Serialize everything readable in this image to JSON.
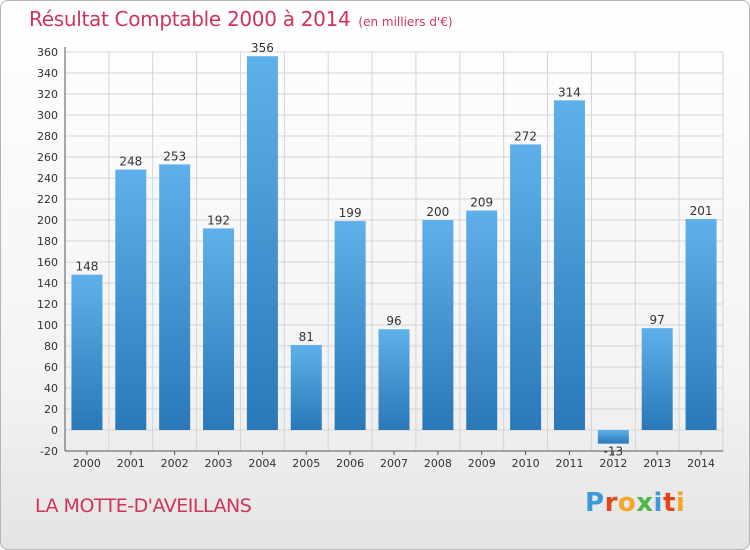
{
  "title": "Résultat Comptable 2000 à 2014",
  "subtitle": "(en milliers d'€)",
  "location": "LA MOTTE-D'AVEILLANS",
  "brand": "Proxiti",
  "brand_colors": [
    "#3a9ad9",
    "#e0471f",
    "#f5a623",
    "#4db848",
    "#3a9ad9",
    "#e0471f",
    "#f5a623"
  ],
  "chart_data": {
    "type": "bar",
    "categories": [
      "2000",
      "2001",
      "2002",
      "2003",
      "2004",
      "2005",
      "2006",
      "2007",
      "2008",
      "2009",
      "2010",
      "2011",
      "2012",
      "2013",
      "2014"
    ],
    "values": [
      148,
      248,
      253,
      192,
      356,
      81,
      199,
      96,
      200,
      209,
      272,
      314,
      -13,
      97,
      201
    ],
    "data_labels": [
      "148",
      "248",
      "253",
      "192",
      "356",
      "81",
      "199",
      "96",
      "200",
      "209",
      "272",
      "314",
      "-13",
      "97",
      "201"
    ],
    "ylim": [
      -20,
      360
    ],
    "yticks": [
      -20,
      0,
      20,
      40,
      60,
      80,
      100,
      120,
      140,
      160,
      180,
      200,
      220,
      240,
      260,
      280,
      300,
      320,
      340,
      360
    ],
    "grid": true,
    "bar_color": "#3d94d6"
  }
}
